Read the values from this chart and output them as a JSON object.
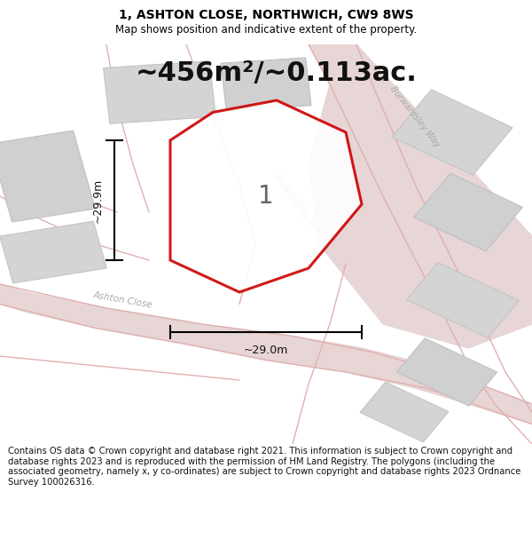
{
  "title": "1, ASHTON CLOSE, NORTHWICH, CW9 8WS",
  "subtitle": "Map shows position and indicative extent of the property.",
  "area_label": "~456m²/~0.113ac.",
  "plot_number": "1",
  "width_label": "~29.0m",
  "height_label": "~29.9m",
  "footer_text": "Contains OS data © Crown copyright and database right 2021. This information is subject to Crown copyright and database rights 2023 and is reproduced with the permission of HM Land Registry. The polygons (including the associated geometry, namely x, y co-ordinates) are subject to Crown copyright and database rights 2023 Ordnance Survey 100026316.",
  "bg_color": "#ffffff",
  "map_bg": "#f0f0f0",
  "road_fill": "#e8d5d5",
  "road_line": "#e0b0b0",
  "building_color": "#d8d8d8",
  "building_edge": "#c8c8c8",
  "plot_color": "#cc0000",
  "plot_fill": "#ffffff",
  "title_fontsize": 10,
  "subtitle_fontsize": 8.5,
  "area_fontsize": 22,
  "footer_fontsize": 7.2,
  "dim_fontsize": 9,
  "label_fontsize": 8,
  "street_fontsize": 7.5,
  "plot_num_fontsize": 20
}
